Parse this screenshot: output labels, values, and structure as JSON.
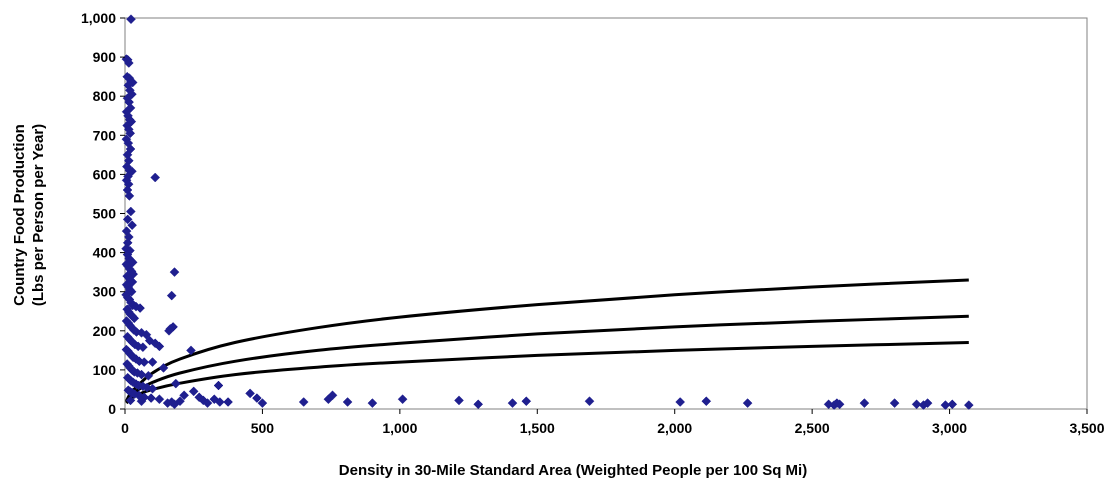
{
  "chart_data": {
    "type": "scatter",
    "title": "",
    "xlabel": "Density in 30-Mile Standard Area (Weighted People per 100 Sq Mi)",
    "ylabel_lines": [
      "Country Food Production",
      "(Lbs per Person per Year)"
    ],
    "xlim": [
      0,
      3500
    ],
    "ylim": [
      0,
      1000
    ],
    "x_ticks": [
      0,
      500,
      1000,
      1500,
      2000,
      2500,
      3000,
      3500
    ],
    "x_tick_labels": [
      "0",
      "500",
      "1,000",
      "1,500",
      "2,000",
      "2,500",
      "3,000",
      "3,500"
    ],
    "y_ticks": [
      0,
      100,
      200,
      300,
      400,
      500,
      600,
      700,
      800,
      900,
      1000
    ],
    "y_tick_labels": [
      "0",
      "100",
      "200",
      "300",
      "400",
      "500",
      "600",
      "700",
      "800",
      "900",
      "1,000"
    ],
    "grid": false,
    "legend": "none",
    "colors": {
      "points": "#1f1f8f",
      "curves": "#000000",
      "axes": "#808080"
    },
    "points": [
      [
        22,
        997
      ],
      [
        5,
        895
      ],
      [
        10,
        893
      ],
      [
        14,
        885
      ],
      [
        8,
        850
      ],
      [
        16,
        846
      ],
      [
        22,
        838
      ],
      [
        28,
        835
      ],
      [
        12,
        828
      ],
      [
        18,
        815
      ],
      [
        25,
        805
      ],
      [
        9,
        795
      ],
      [
        15,
        785
      ],
      [
        20,
        770
      ],
      [
        6,
        760
      ],
      [
        11,
        750
      ],
      [
        17,
        740
      ],
      [
        23,
        735
      ],
      [
        8,
        725
      ],
      [
        14,
        715
      ],
      [
        19,
        705
      ],
      [
        5,
        690
      ],
      [
        12,
        680
      ],
      [
        20,
        665
      ],
      [
        9,
        650
      ],
      [
        14,
        635
      ],
      [
        7,
        620
      ],
      [
        16,
        610
      ],
      [
        25,
        608
      ],
      [
        11,
        595
      ],
      [
        6,
        585
      ],
      [
        13,
        575
      ],
      [
        9,
        560
      ],
      [
        16,
        545
      ],
      [
        21,
        505
      ],
      [
        10,
        485
      ],
      [
        26,
        470
      ],
      [
        6,
        455
      ],
      [
        14,
        440
      ],
      [
        10,
        425
      ],
      [
        4,
        410
      ],
      [
        18,
        405
      ],
      [
        9,
        395
      ],
      [
        15,
        385
      ],
      [
        21,
        380
      ],
      [
        28,
        375
      ],
      [
        5,
        370
      ],
      [
        11,
        365
      ],
      [
        17,
        358
      ],
      [
        24,
        352
      ],
      [
        30,
        345
      ],
      [
        8,
        340
      ],
      [
        14,
        335
      ],
      [
        20,
        330
      ],
      [
        27,
        325
      ],
      [
        6,
        318
      ],
      [
        12,
        312
      ],
      [
        18,
        305
      ],
      [
        24,
        300
      ],
      [
        4,
        292
      ],
      [
        10,
        285
      ],
      [
        16,
        280
      ],
      [
        22,
        272
      ],
      [
        28,
        265
      ],
      [
        40,
        262
      ],
      [
        55,
        258
      ],
      [
        8,
        255
      ],
      [
        14,
        248
      ],
      [
        20,
        242
      ],
      [
        26,
        238
      ],
      [
        34,
        232
      ],
      [
        6,
        225
      ],
      [
        12,
        220
      ],
      [
        18,
        214
      ],
      [
        25,
        208
      ],
      [
        32,
        202
      ],
      [
        42,
        197
      ],
      [
        60,
        195
      ],
      [
        78,
        190
      ],
      [
        9,
        185
      ],
      [
        15,
        180
      ],
      [
        21,
        175
      ],
      [
        28,
        170
      ],
      [
        36,
        165
      ],
      [
        48,
        160
      ],
      [
        65,
        158
      ],
      [
        90,
        175
      ],
      [
        110,
        168
      ],
      [
        125,
        160
      ],
      [
        5,
        152
      ],
      [
        11,
        148
      ],
      [
        17,
        142
      ],
      [
        23,
        138
      ],
      [
        30,
        132
      ],
      [
        40,
        128
      ],
      [
        52,
        122
      ],
      [
        70,
        120
      ],
      [
        100,
        120
      ],
      [
        8,
        115
      ],
      [
        14,
        110
      ],
      [
        20,
        104
      ],
      [
        27,
        99
      ],
      [
        34,
        95
      ],
      [
        45,
        92
      ],
      [
        60,
        88
      ],
      [
        85,
        85
      ],
      [
        140,
        105
      ],
      [
        10,
        80
      ],
      [
        16,
        76
      ],
      [
        22,
        72
      ],
      [
        30,
        68
      ],
      [
        40,
        64
      ],
      [
        50,
        60
      ],
      [
        65,
        58
      ],
      [
        80,
        55
      ],
      [
        100,
        52
      ],
      [
        12,
        48
      ],
      [
        18,
        45
      ],
      [
        26,
        42
      ],
      [
        35,
        38
      ],
      [
        50,
        35
      ],
      [
        70,
        30
      ],
      [
        95,
        28
      ],
      [
        125,
        25
      ],
      [
        20,
        22
      ],
      [
        60,
        20
      ],
      [
        110,
        592
      ],
      [
        160,
        200
      ],
      [
        175,
        210
      ],
      [
        180,
        350
      ],
      [
        170,
        290
      ],
      [
        165,
        205
      ],
      [
        185,
        65
      ],
      [
        170,
        18
      ],
      [
        180,
        12
      ],
      [
        155,
        15
      ],
      [
        200,
        20
      ],
      [
        215,
        35
      ],
      [
        240,
        150
      ],
      [
        250,
        45
      ],
      [
        270,
        30
      ],
      [
        285,
        22
      ],
      [
        300,
        15
      ],
      [
        325,
        25
      ],
      [
        340,
        60
      ],
      [
        345,
        18
      ],
      [
        375,
        18
      ],
      [
        455,
        40
      ],
      [
        480,
        28
      ],
      [
        500,
        15
      ],
      [
        650,
        18
      ],
      [
        740,
        25
      ],
      [
        755,
        35
      ],
      [
        810,
        18
      ],
      [
        900,
        15
      ],
      [
        1010,
        25
      ],
      [
        1215,
        22
      ],
      [
        1285,
        12
      ],
      [
        1410,
        15
      ],
      [
        1460,
        20
      ],
      [
        1690,
        20
      ],
      [
        2020,
        18
      ],
      [
        2115,
        20
      ],
      [
        2265,
        15
      ],
      [
        2560,
        12
      ],
      [
        2580,
        10
      ],
      [
        2590,
        15
      ],
      [
        2600,
        12
      ],
      [
        2690,
        15
      ],
      [
        2800,
        15
      ],
      [
        2880,
        12
      ],
      [
        2905,
        10
      ],
      [
        2920,
        15
      ],
      [
        2985,
        10
      ],
      [
        3010,
        12
      ],
      [
        3070,
        10
      ]
    ],
    "curves": [
      {
        "points": [
          [
            5,
            20
          ],
          [
            20,
            40
          ],
          [
            50,
            62
          ],
          [
            100,
            92
          ],
          [
            200,
            128
          ],
          [
            400,
            170
          ],
          [
            700,
            208
          ],
          [
            1000,
            235
          ],
          [
            1500,
            267
          ],
          [
            2000,
            292
          ],
          [
            2500,
            312
          ],
          [
            3070,
            330
          ]
        ]
      },
      {
        "points": [
          [
            5,
            18
          ],
          [
            20,
            32
          ],
          [
            50,
            50
          ],
          [
            100,
            68
          ],
          [
            200,
            92
          ],
          [
            400,
            122
          ],
          [
            700,
            150
          ],
          [
            1000,
            168
          ],
          [
            1500,
            192
          ],
          [
            2000,
            210
          ],
          [
            2500,
            224
          ],
          [
            3070,
            237
          ]
        ]
      },
      {
        "points": [
          [
            5,
            15
          ],
          [
            20,
            26
          ],
          [
            50,
            38
          ],
          [
            100,
            50
          ],
          [
            200,
            66
          ],
          [
            400,
            88
          ],
          [
            700,
            107
          ],
          [
            1000,
            120
          ],
          [
            1500,
            137
          ],
          [
            2000,
            150
          ],
          [
            2500,
            160
          ],
          [
            3070,
            170
          ]
        ]
      }
    ]
  }
}
